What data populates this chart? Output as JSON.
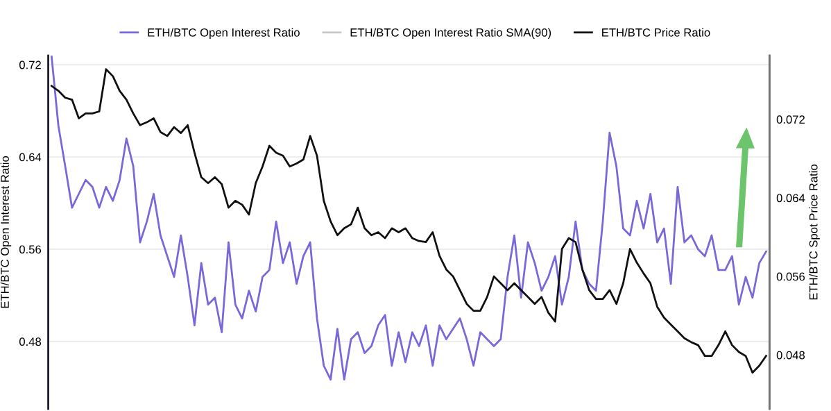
{
  "chart_data": {
    "type": "line",
    "ylabel": "ETH/BTC Open Interest Ratio",
    "y2label": "ETH/BTC Spot Price Ratio",
    "categories": [
      null,
      null,
      null,
      null,
      null,
      null,
      null,
      null,
      null,
      null,
      null,
      null,
      null,
      null,
      null,
      null,
      null,
      null,
      null,
      null,
      null,
      null,
      null,
      null,
      null,
      null,
      null,
      null,
      null,
      null,
      null,
      null,
      null,
      null,
      null,
      null,
      null,
      null,
      null,
      null,
      null,
      null,
      null,
      null,
      null,
      null,
      null,
      null,
      null,
      null,
      null,
      null,
      null,
      null,
      null,
      null,
      null,
      null,
      null,
      null,
      null,
      null,
      null,
      null,
      null,
      null,
      null,
      null,
      null,
      null,
      null,
      null,
      null,
      null,
      null,
      null,
      null,
      null,
      null,
      null,
      null,
      null,
      null,
      null,
      null,
      null,
      null,
      null,
      null,
      null,
      null,
      null,
      null,
      null,
      null,
      null,
      null,
      null,
      null,
      null,
      null,
      null,
      null,
      null,
      null,
      null
    ],
    "series": [
      {
        "name": "ETH/BTC Open Interest Ratio",
        "color": "#7b68d8",
        "values": [
          0.727,
          0.667,
          0.632,
          0.596,
          0.608,
          0.62,
          0.614,
          0.596,
          0.614,
          0.602,
          0.62,
          0.656,
          0.632,
          0.566,
          0.584,
          0.608,
          0.572,
          0.554,
          0.536,
          0.572,
          0.536,
          0.494,
          0.548,
          0.512,
          0.518,
          0.488,
          0.566,
          0.512,
          0.5,
          0.524,
          0.506,
          0.536,
          0.542,
          0.584,
          0.548,
          0.566,
          0.53,
          0.554,
          0.566,
          0.5,
          0.459,
          0.447,
          0.491,
          0.447,
          0.482,
          0.488,
          0.47,
          0.476,
          0.494,
          0.503,
          0.459,
          0.488,
          0.462,
          0.488,
          0.476,
          0.494,
          0.459,
          0.494,
          0.482,
          0.491,
          0.5,
          0.482,
          0.459,
          0.488,
          0.482,
          0.476,
          0.482,
          0.536,
          0.572,
          0.518,
          0.566,
          0.548,
          0.524,
          0.536,
          0.554,
          0.512,
          0.536,
          0.584,
          0.542,
          0.53,
          0.524,
          0.584,
          0.661,
          0.632,
          0.578,
          0.572,
          0.602,
          0.578,
          0.608,
          0.566,
          0.578,
          0.53,
          0.614,
          0.566,
          0.572,
          0.56,
          0.554,
          0.572,
          0.542,
          0.542,
          0.554,
          0.512,
          0.536,
          0.518,
          0.548,
          0.558
        ]
      },
      {
        "name": "ETH/BTC Open Interest Ratio SMA(90)",
        "color": "#c8c8c8",
        "values": [
          null,
          null,
          null,
          null,
          null,
          null,
          null,
          null,
          null,
          null,
          null,
          null,
          null,
          null,
          null,
          null,
          null,
          null,
          null,
          null,
          null,
          null,
          null,
          null,
          null,
          null,
          null,
          null,
          null,
          null,
          null,
          null,
          null,
          null,
          null,
          null,
          null,
          null,
          null,
          null,
          null,
          null,
          null,
          null,
          null,
          null,
          null,
          null,
          null,
          null,
          null,
          null,
          null,
          null,
          null,
          null,
          null,
          null,
          null,
          null,
          null,
          null,
          null,
          null,
          null,
          null,
          null,
          null,
          null,
          null,
          null,
          null,
          null,
          null,
          null,
          null,
          null,
          null,
          null,
          null,
          null,
          null,
          null,
          null,
          null,
          null,
          null,
          null,
          null,
          null,
          null,
          null,
          null,
          null,
          null,
          null,
          null,
          null,
          null,
          null,
          null,
          null,
          null,
          null,
          null,
          null
        ]
      },
      {
        "name": "ETH/BTC Price Ratio",
        "color": "#111111",
        "axis": "y2",
        "values": [
          0.0754,
          0.0749,
          0.0742,
          0.074,
          0.0721,
          0.0726,
          0.0726,
          0.0728,
          0.0771,
          0.0764,
          0.0749,
          0.074,
          0.0726,
          0.0714,
          0.0717,
          0.0721,
          0.0707,
          0.0703,
          0.0712,
          0.0706,
          0.0714,
          0.0686,
          0.0661,
          0.0655,
          0.0661,
          0.0654,
          0.063,
          0.0637,
          0.0633,
          0.0623,
          0.0655,
          0.0672,
          0.0693,
          0.0686,
          0.0683,
          0.0672,
          0.0675,
          0.0679,
          0.0703,
          0.0683,
          0.0637,
          0.0616,
          0.0602,
          0.0609,
          0.0613,
          0.063,
          0.0609,
          0.0602,
          0.0605,
          0.0599,
          0.0609,
          0.0605,
          0.0609,
          0.0599,
          0.0596,
          0.0595,
          0.0605,
          0.0581,
          0.0567,
          0.056,
          0.0546,
          0.0532,
          0.0525,
          0.0525,
          0.0539,
          0.056,
          0.0553,
          0.0546,
          0.0553,
          0.0546,
          0.0539,
          0.0532,
          0.0539,
          0.0523,
          0.0514,
          0.0588,
          0.0599,
          0.0595,
          0.0567,
          0.0546,
          0.0537,
          0.0537,
          0.0546,
          0.0532,
          0.0553,
          0.0588,
          0.0574,
          0.0563,
          0.0553,
          0.0529,
          0.0518,
          0.0511,
          0.0504,
          0.0497,
          0.0493,
          0.049,
          0.0479,
          0.0479,
          0.049,
          0.0504,
          0.049,
          0.0483,
          0.0479,
          0.0462,
          0.0469,
          0.0479
        ]
      }
    ],
    "ylim": [
      0.4215,
      0.728
    ],
    "yticks": [
      {
        "value": 0.48,
        "label": "0.48"
      },
      {
        "value": 0.56,
        "label": "0.56"
      },
      {
        "value": 0.64,
        "label": "0.64"
      },
      {
        "value": 0.72,
        "label": "0.72"
      }
    ],
    "y2lim": [
      0.0425,
      0.0785
    ],
    "y2ticks": [
      {
        "value": 0.048,
        "label": "0.048"
      },
      {
        "value": 0.056,
        "label": "0.056"
      },
      {
        "value": 0.064,
        "label": "0.064"
      },
      {
        "value": 0.072,
        "label": "0.072"
      }
    ],
    "tick_labels": "y",
    "grid": "y",
    "legend": "top",
    "marker": "none",
    "line_style": "solid"
  }
}
